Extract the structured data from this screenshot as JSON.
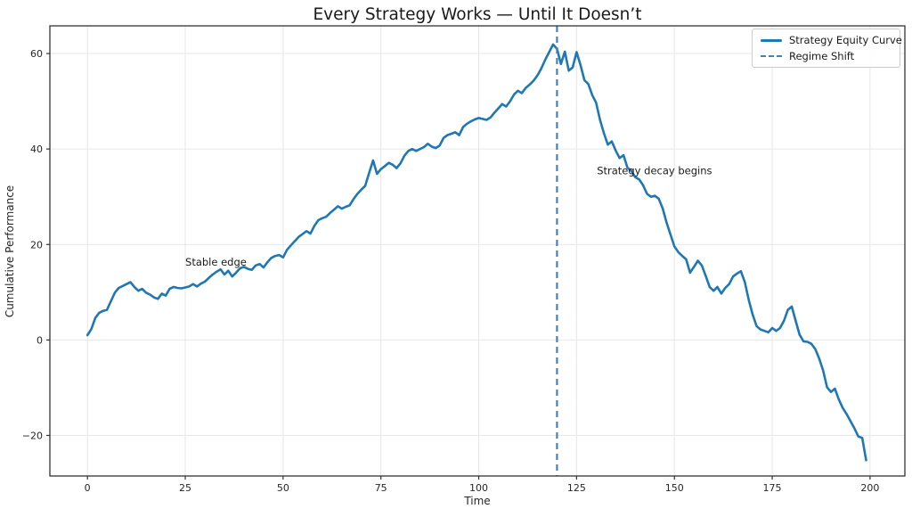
{
  "chart_data": {
    "type": "line",
    "title": "Every Strategy Works — Until It Doesn’t",
    "xlabel": "Time",
    "ylabel": "Cumulative Performance",
    "xlim": [
      -9.6,
      208.9
    ],
    "ylim": [
      -28.5,
      65.8
    ],
    "x_ticks": [
      0,
      25,
      50,
      75,
      100,
      125,
      150,
      175,
      200
    ],
    "y_ticks": [
      -20,
      0,
      20,
      40,
      60
    ],
    "grid": true,
    "colors": {
      "line": "#1f77b4",
      "regime": "#4682b4",
      "grid": "#e7e7e7",
      "spine": "#333333",
      "tick_text": "#262626",
      "title_text": "#1a1a1a"
    },
    "legend": {
      "position": "upper right",
      "entries": [
        {
          "label": "Strategy Equity Curve",
          "style": "solid",
          "color": "#1f77b4"
        },
        {
          "label": "Regime Shift",
          "style": "dashed",
          "color": "#4682b4"
        }
      ]
    },
    "regime_shift": {
      "x": 120
    },
    "annotations": [
      {
        "text": "Stable edge",
        "x": 25.0,
        "y": 16.3
      },
      {
        "text": "Strategy decay begins",
        "x": 130.2,
        "y": 35.5
      }
    ],
    "series": [
      {
        "name": "Strategy Equity Curve",
        "x_start": 0,
        "x_step": 1,
        "values": [
          1.0,
          2.3,
          4.6,
          5.7,
          6.1,
          6.3,
          8.1,
          9.9,
          10.9,
          11.3,
          11.7,
          12.1,
          11.1,
          10.3,
          10.7,
          9.9,
          9.5,
          8.9,
          8.6,
          9.7,
          9.3,
          10.7,
          11.1,
          10.9,
          10.8,
          11.0,
          11.2,
          11.7,
          11.2,
          11.8,
          12.2,
          13.0,
          13.7,
          14.3,
          14.8,
          13.7,
          14.5,
          13.3,
          14.1,
          15.0,
          15.3,
          14.9,
          14.7,
          15.6,
          15.9,
          15.2,
          16.3,
          17.2,
          17.6,
          17.8,
          17.3,
          18.9,
          19.8,
          20.7,
          21.6,
          22.2,
          22.8,
          22.3,
          23.9,
          25.1,
          25.5,
          25.8,
          26.6,
          27.3,
          28.0,
          27.5,
          27.9,
          28.2,
          29.5,
          30.6,
          31.5,
          32.3,
          35.0,
          37.6,
          34.8,
          35.8,
          36.4,
          37.1,
          36.7,
          36.0,
          37.0,
          38.6,
          39.6,
          40.0,
          39.6,
          40.0,
          40.4,
          41.1,
          40.5,
          40.2,
          40.7,
          42.3,
          42.9,
          43.2,
          43.5,
          42.9,
          44.6,
          45.3,
          45.8,
          46.2,
          46.5,
          46.3,
          46.1,
          46.6,
          47.6,
          48.5,
          49.4,
          48.9,
          50.0,
          51.4,
          52.2,
          51.7,
          52.8,
          53.5,
          54.3,
          55.4,
          56.9,
          58.7,
          60.3,
          61.9,
          61.0,
          57.8,
          60.4,
          56.4,
          57.1,
          60.3,
          57.6,
          54.4,
          53.6,
          51.3,
          49.7,
          46.1,
          43.3,
          40.9,
          41.6,
          39.7,
          38.1,
          38.7,
          36.1,
          35.4,
          34.1,
          33.6,
          32.4,
          30.6,
          30.0,
          30.2,
          29.6,
          27.6,
          24.6,
          22.1,
          19.6,
          18.4,
          17.6,
          16.9,
          14.1,
          15.3,
          16.6,
          15.6,
          13.4,
          11.1,
          10.3,
          11.1,
          9.7,
          10.9,
          11.7,
          13.3,
          13.9,
          14.4,
          12.1,
          8.4,
          5.3,
          2.9,
          2.2,
          1.9,
          1.6,
          2.5,
          1.9,
          2.5,
          4.0,
          6.3,
          7.0,
          4.0,
          1.1,
          -0.3,
          -0.4,
          -0.8,
          -1.9,
          -3.9,
          -6.4,
          -9.9,
          -10.9,
          -10.2,
          -12.4,
          -14.2,
          -15.5,
          -17.0,
          -18.5,
          -20.2,
          -20.5,
          -25.2
        ]
      }
    ]
  }
}
